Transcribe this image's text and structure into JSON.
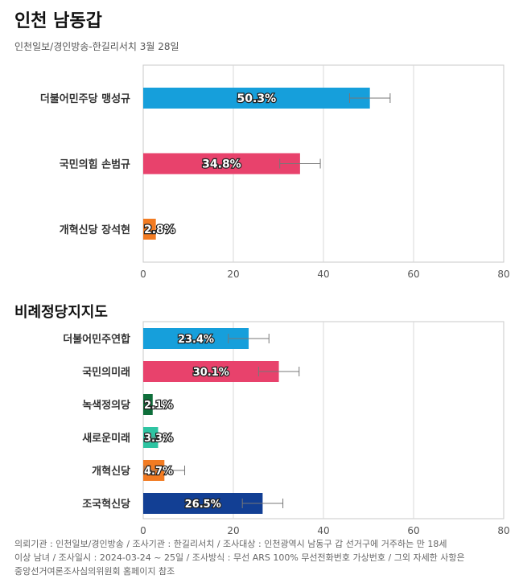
{
  "header": {
    "title": "인천 남동갑",
    "subtitle": "인천일보/경인방송-한길리서치 3월 28일"
  },
  "section2": {
    "title": "비례정당지지도"
  },
  "chart_data": [
    {
      "type": "bar",
      "orientation": "horizontal",
      "title": "인천 남동갑",
      "categories": [
        "더불어민주당 맹성규",
        "국민의힘 손범규",
        "개혁신당 장석현"
      ],
      "values": [
        50.3,
        34.8,
        2.8
      ],
      "value_labels": [
        "50.3%",
        "34.8%",
        "2.8%"
      ],
      "error": [
        4.5,
        4.5,
        0
      ],
      "colors": [
        "#169fdb",
        "#e8426c",
        "#f27b22"
      ],
      "xlim": [
        0,
        80
      ],
      "xticks": [
        0,
        20,
        40,
        60,
        80
      ],
      "grid": true
    },
    {
      "type": "bar",
      "orientation": "horizontal",
      "title": "비례정당지지도",
      "categories": [
        "더불어민주연합",
        "국민의미래",
        "녹색정의당",
        "새로운미래",
        "개혁신당",
        "조국혁신당"
      ],
      "values": [
        23.4,
        30.1,
        2.1,
        3.3,
        4.7,
        26.5
      ],
      "value_labels": [
        "23.4%",
        "30.1%",
        "2.1%",
        "3.3%",
        "4.7%",
        "26.5%"
      ],
      "error": [
        4.5,
        4.5,
        0,
        1.6,
        4.5,
        4.5
      ],
      "colors": [
        "#169fdb",
        "#e8426c",
        "#0e6e3a",
        "#2ec4a2",
        "#f27b22",
        "#123f94"
      ],
      "xlim": [
        0,
        80
      ],
      "xticks": [
        0,
        20,
        40,
        60,
        80
      ],
      "grid": true
    }
  ],
  "footnote": {
    "line1": "의뢰기관 : 인천일보/경인방송 / 조사기관 : 한길리서치 / 조사대상 : 인천광역시 남동구 갑 선거구에 거주하는 만 18세",
    "line2": "이상 남녀 / 조사일시 : 2024-03-24 ~ 25일 / 조사방식 : 무선 ARS 100% 무선전화번호 가상번호 / 그외 자세한 사항은",
    "line3": "중앙선거여론조사심의위원회 홈페이지 참조"
  }
}
